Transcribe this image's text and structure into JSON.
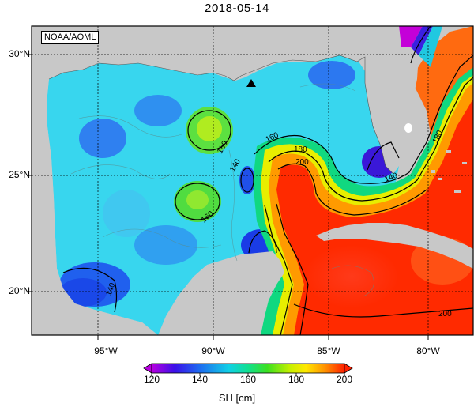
{
  "title": "2018-05-14",
  "credit": "NOAA/AOML",
  "map": {
    "lat_labels": [
      "30°N",
      "25°N",
      "20°N"
    ],
    "lon_labels": [
      "95°W",
      "90°W",
      "85°W",
      "80°W"
    ],
    "marker_icon": "triangle-marker"
  },
  "colorbar": {
    "ticks": [
      "120",
      "140",
      "160",
      "180",
      "200"
    ],
    "unit_label": "SH [cm]",
    "min": 120,
    "max": 200
  },
  "contour_labels": [
    "160",
    "180",
    "200",
    "140",
    "180",
    "160",
    "140",
    "180",
    "140",
    "200"
  ],
  "colors": {
    "land": "#c8c8c8",
    "low": "#9a00d8",
    "high": "#ff2400"
  }
}
